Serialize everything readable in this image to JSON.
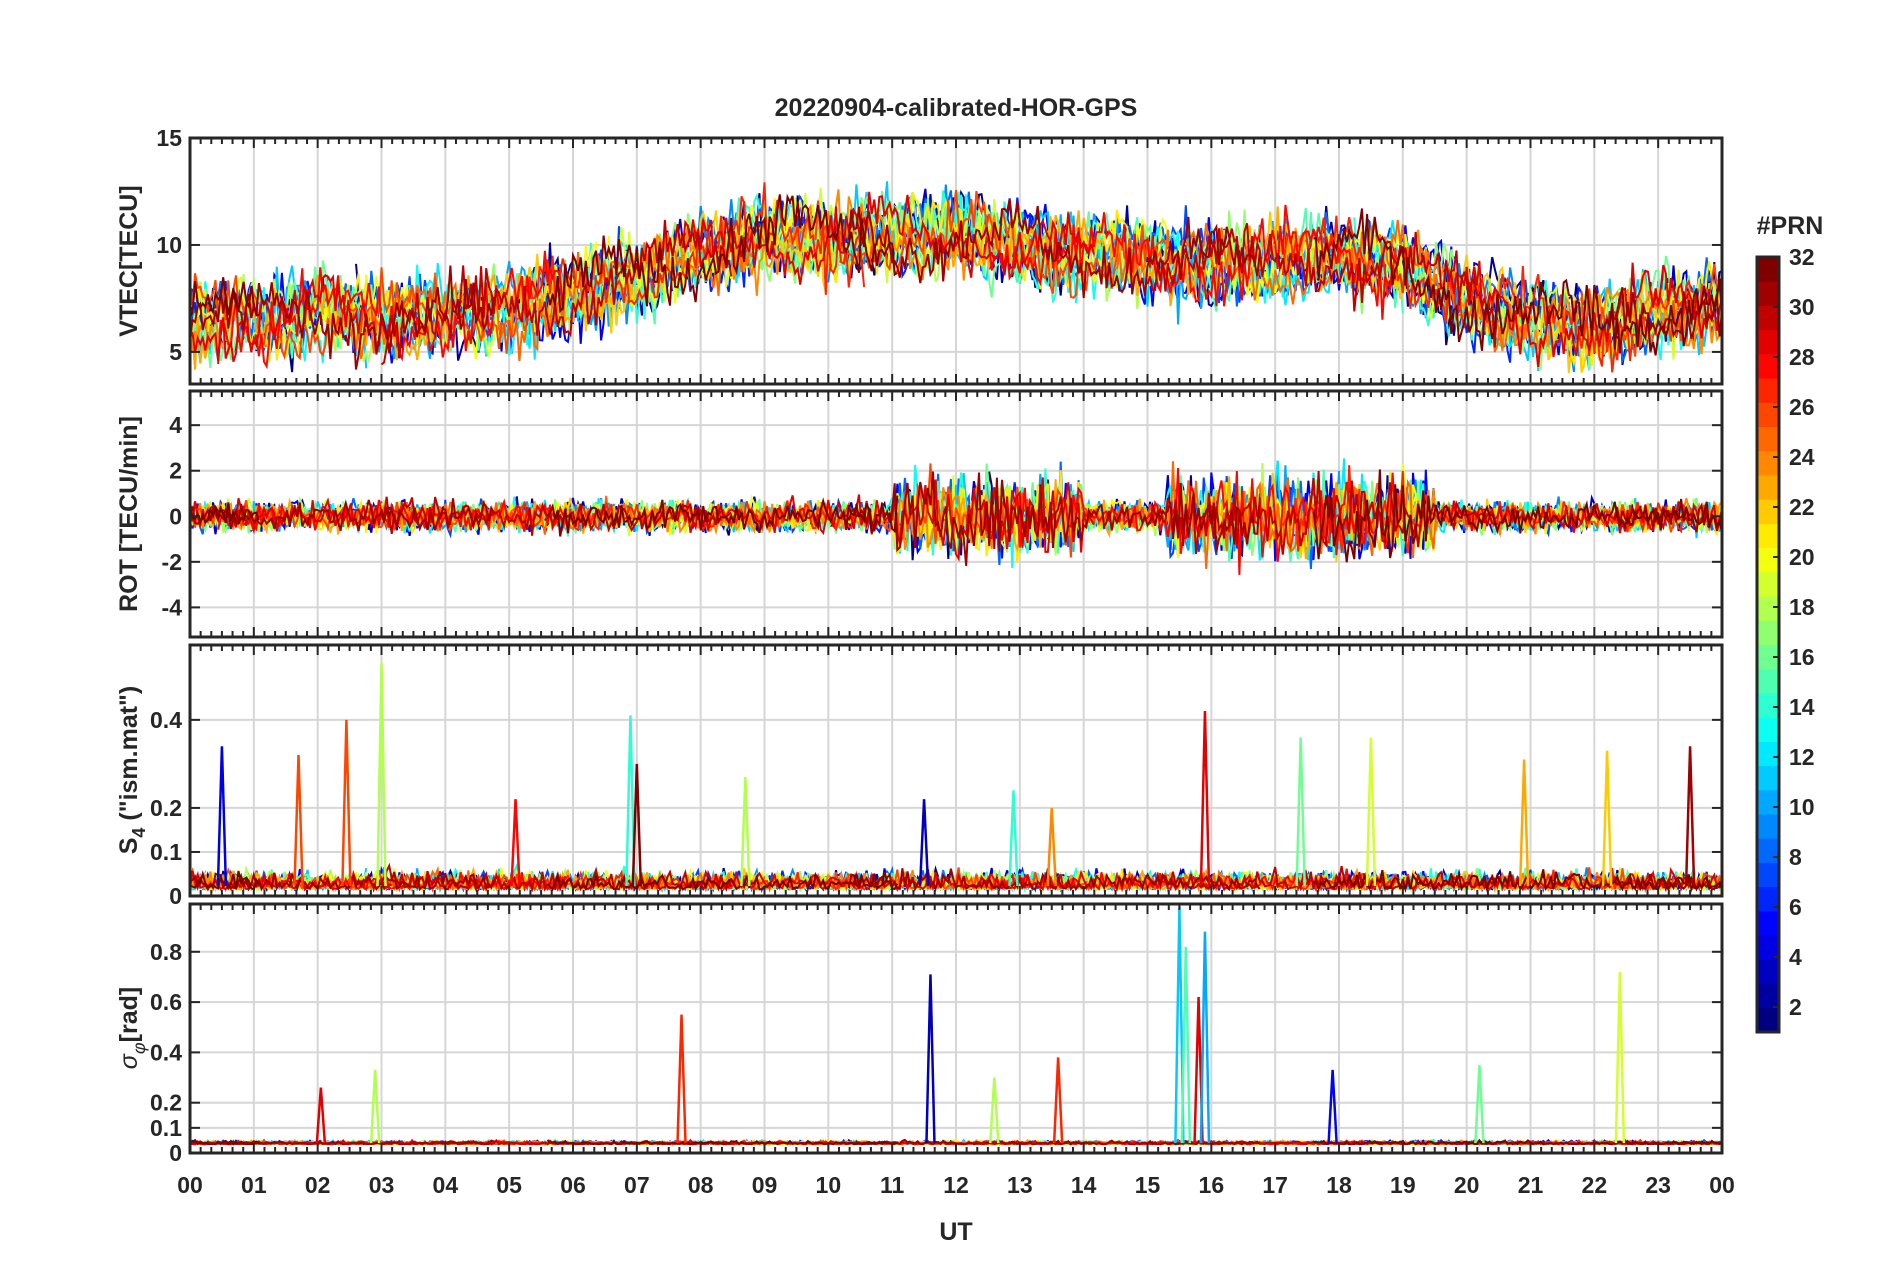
{
  "chart_data": {
    "type": "line",
    "title": "20220904-calibrated-HOR-GPS",
    "xlabel": "UT",
    "x_ticklabels": [
      "00",
      "01",
      "02",
      "03",
      "04",
      "05",
      "06",
      "07",
      "08",
      "09",
      "10",
      "11",
      "12",
      "13",
      "14",
      "15",
      "16",
      "17",
      "18",
      "19",
      "20",
      "21",
      "22",
      "23",
      "00"
    ],
    "xlim": [
      0,
      24
    ],
    "colorbar": {
      "label": "#PRN",
      "range": [
        1,
        32
      ],
      "ticks": [
        2,
        4,
        6,
        8,
        10,
        12,
        14,
        16,
        18,
        20,
        22,
        24,
        26,
        28,
        30,
        32
      ],
      "ticklabels": [
        "2",
        "4",
        "6",
        "8",
        "10",
        "12",
        "14",
        "16",
        "18",
        "20",
        "22",
        "24",
        "26",
        "28",
        "30",
        "32"
      ]
    },
    "panels": [
      {
        "id": "vtec",
        "ylabel": "VTEC[TECU]",
        "ylim": [
          3.5,
          15
        ],
        "yticks": [
          5,
          10,
          15
        ],
        "yticklabels": [
          "5",
          "10",
          "15"
        ],
        "trend": {
          "x": [
            0,
            1,
            2,
            3,
            4,
            5,
            6,
            7,
            8,
            9,
            10,
            11,
            12,
            13,
            14,
            15,
            16,
            17,
            18,
            19,
            20,
            21,
            22,
            23,
            24
          ],
          "y": [
            6.5,
            6.5,
            6.8,
            6.5,
            6.5,
            7.0,
            7.8,
            8.5,
            9.8,
            10.4,
            10.3,
            10.5,
            10.5,
            10.0,
            9.4,
            9.4,
            9.0,
            9.2,
            9.5,
            9.0,
            7.5,
            6.5,
            6.3,
            7.0,
            7.2
          ]
        }
      },
      {
        "id": "rot",
        "ylabel": "ROT [TECU/min]",
        "ylim": [
          -5.3,
          5.5
        ],
        "yticks": [
          -4,
          -2,
          0,
          2,
          4
        ],
        "yticklabels": [
          "-4",
          "-2",
          "0",
          "2",
          "4"
        ]
      },
      {
        "id": "s4",
        "ylabel_main": "S",
        "ylabel_sub": "4",
        "ylabel_tail": " (\"ism.mat\")",
        "ylim": [
          0,
          0.57
        ],
        "yticks": [
          0,
          0.1,
          0.2,
          0.4
        ],
        "yticklabels": [
          "0",
          "0.1",
          "0.2",
          "0.4"
        ],
        "peaks": [
          {
            "t": 0.5,
            "v": 0.34,
            "prn": 4
          },
          {
            "t": 1.7,
            "v": 0.32,
            "prn": 26
          },
          {
            "t": 2.45,
            "v": 0.4,
            "prn": 26
          },
          {
            "t": 3.0,
            "v": 0.53,
            "prn": 18
          },
          {
            "t": 5.1,
            "v": 0.22,
            "prn": 28
          },
          {
            "t": 6.9,
            "v": 0.41,
            "prn": 14
          },
          {
            "t": 7.0,
            "v": 0.3,
            "prn": 32
          },
          {
            "t": 8.7,
            "v": 0.27,
            "prn": 18
          },
          {
            "t": 11.5,
            "v": 0.22,
            "prn": 3
          },
          {
            "t": 12.9,
            "v": 0.24,
            "prn": 14
          },
          {
            "t": 13.5,
            "v": 0.2,
            "prn": 24
          },
          {
            "t": 15.9,
            "v": 0.42,
            "prn": 29
          },
          {
            "t": 17.4,
            "v": 0.36,
            "prn": 16
          },
          {
            "t": 18.5,
            "v": 0.36,
            "prn": 19
          },
          {
            "t": 20.9,
            "v": 0.31,
            "prn": 23
          },
          {
            "t": 22.2,
            "v": 0.33,
            "prn": 22
          },
          {
            "t": 23.5,
            "v": 0.34,
            "prn": 31
          }
        ]
      },
      {
        "id": "sigphi",
        "ylabel_main": "σ",
        "ylabel_sub": "φ",
        "ylabel_tail": "[rad]",
        "ylim": [
          0,
          0.99
        ],
        "yticks": [
          0,
          0.1,
          0.2,
          0.4,
          0.6,
          0.8
        ],
        "yticklabels": [
          "0",
          "0.1",
          "0.2",
          "0.4",
          "0.6",
          "0.8"
        ],
        "peaks": [
          {
            "t": 2.05,
            "v": 0.26,
            "prn": 29
          },
          {
            "t": 2.9,
            "v": 0.33,
            "prn": 18
          },
          {
            "t": 7.7,
            "v": 0.55,
            "prn": 27
          },
          {
            "t": 11.6,
            "v": 0.71,
            "prn": 3
          },
          {
            "t": 12.6,
            "v": 0.3,
            "prn": 18
          },
          {
            "t": 13.6,
            "v": 0.38,
            "prn": 27
          },
          {
            "t": 15.5,
            "v": 0.98,
            "prn": 11
          },
          {
            "t": 15.6,
            "v": 0.82,
            "prn": 15
          },
          {
            "t": 15.8,
            "v": 0.62,
            "prn": 29
          },
          {
            "t": 15.9,
            "v": 0.88,
            "prn": 10
          },
          {
            "t": 17.9,
            "v": 0.33,
            "prn": 5
          },
          {
            "t": 20.2,
            "v": 0.35,
            "prn": 16
          },
          {
            "t": 22.4,
            "v": 0.72,
            "prn": 19
          }
        ]
      }
    ]
  }
}
